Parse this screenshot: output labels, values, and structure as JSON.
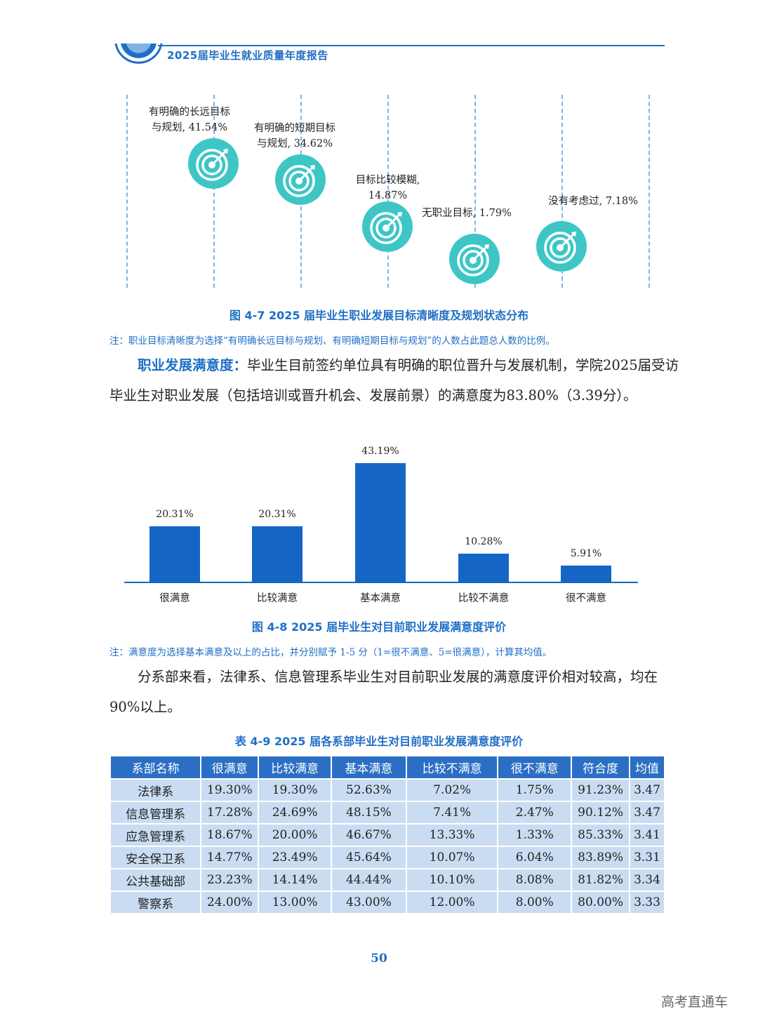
{
  "header": {
    "title": "2025届毕业生就业质量年度报告"
  },
  "figure_4_7": {
    "caption": "图 4-7  2025 届毕业生职业发展目标清晰度及规划状态分布",
    "note": "注：职业目标清晰度为选择“有明确长远目标与规划、有明确短期目标与规划”的人数占此题总人数的比例。",
    "items": [
      {
        "line1": "有明确的长远目标",
        "line2": "与规划, 41.54%"
      },
      {
        "line1": "有明确的短期目标",
        "line2": "与规划, 34.62%"
      },
      {
        "line1": "目标比较模糊,",
        "line2": "14.87%"
      },
      {
        "line1": "无职业目标, 1.79%",
        "line2": ""
      },
      {
        "line1": "没有考虑过, 7.18%",
        "line2": ""
      }
    ]
  },
  "para1": {
    "highlight": "职业发展满意度：",
    "text": "毕业生目前签约单位具有明确的职位晋升与发展机制，学院2025届受访毕业生对职业发展（包括培训或晋升机会、发展前景）的满意度为83.80%（3.39分）。"
  },
  "chart_data": {
    "type": "bar",
    "categories": [
      "很满意",
      "比较满意",
      "基本满意",
      "比较不满意",
      "很不满意"
    ],
    "values": [
      20.31,
      20.31,
      43.19,
      10.28,
      5.91
    ],
    "value_labels": [
      "20.31%",
      "20.31%",
      "43.19%",
      "10.28%",
      "5.91%"
    ],
    "title": "图 4-8  2025 届毕业生对目前职业发展满意度评价",
    "color": "#1566c4"
  },
  "figure_4_8": {
    "note": "注：满意度为选择基本满意及以上的占比，并分别赋予 1-5 分（1=很不满意、5=很满意），计算其均值。"
  },
  "para2": {
    "text": "分系部来看，法律系、信息管理系毕业生对目前职业发展的满意度评价相对较高，均在 90%以上。"
  },
  "table_4_9": {
    "caption": "表 4-9  2025 届各系部毕业生对目前职业发展满意度评价",
    "headers": [
      "系部名称",
      "很满意",
      "比较满意",
      "基本满意",
      "比较不满意",
      "很不满意",
      "符合度",
      "均值"
    ],
    "rows": [
      [
        "法律系",
        "19.30%",
        "19.30%",
        "52.63%",
        "7.02%",
        "1.75%",
        "91.23%",
        "3.47"
      ],
      [
        "信息管理系",
        "17.28%",
        "24.69%",
        "48.15%",
        "7.41%",
        "2.47%",
        "90.12%",
        "3.47"
      ],
      [
        "应急管理系",
        "18.67%",
        "20.00%",
        "46.67%",
        "13.33%",
        "1.33%",
        "85.33%",
        "3.41"
      ],
      [
        "安全保卫系",
        "14.77%",
        "23.49%",
        "45.64%",
        "10.07%",
        "6.04%",
        "83.89%",
        "3.31"
      ],
      [
        "公共基础部",
        "23.23%",
        "14.14%",
        "44.44%",
        "10.10%",
        "8.08%",
        "81.82%",
        "3.34"
      ],
      [
        "警察系",
        "24.00%",
        "13.00%",
        "43.00%",
        "12.00%",
        "8.00%",
        "80.00%",
        "3.33"
      ]
    ]
  },
  "page_number": "50",
  "watermark": "高考直通车",
  "colors": {
    "accent": "#1f6fc5",
    "target": "#3ec6c6",
    "table_header": "#2b6fc4",
    "table_cell": "#c9dcf2"
  }
}
